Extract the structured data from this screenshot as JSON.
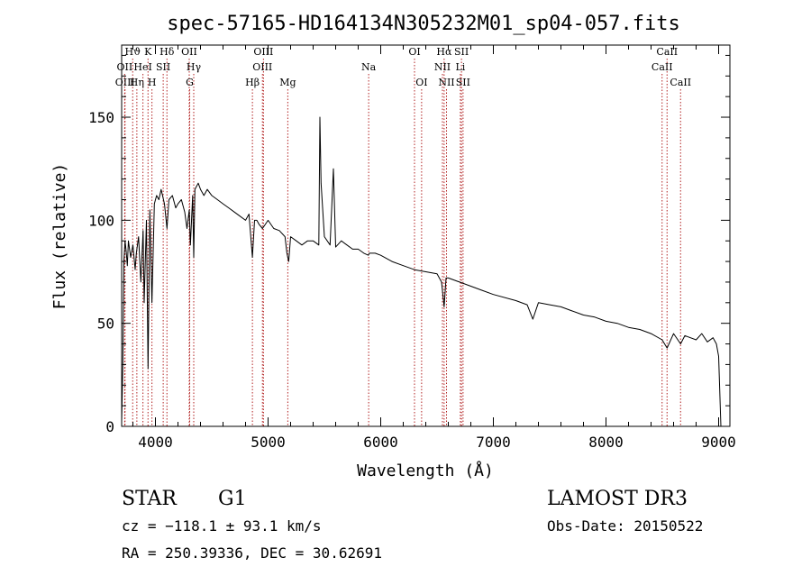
{
  "chart_data": {
    "type": "line",
    "title": "spec-57165-HD164134N305232M01_sp04-057.fits",
    "xlabel": "Wavelength (Å)",
    "ylabel": "Flux (relative)",
    "xlim": [
      3700,
      9100
    ],
    "ylim": [
      0,
      185
    ],
    "x_ticks": [
      4000,
      5000,
      6000,
      7000,
      8000,
      9000
    ],
    "x_tick_labels": [
      "4000",
      "5000",
      "6000",
      "7000",
      "8000",
      "9000"
    ],
    "y_ticks": [
      0,
      50,
      100,
      150
    ],
    "y_tick_labels": [
      "0",
      "50",
      "100",
      "150"
    ],
    "series": [
      {
        "name": "Flux",
        "x": [
          3700,
          3710,
          3720,
          3730,
          3740,
          3750,
          3760,
          3780,
          3800,
          3820,
          3830,
          3850,
          3870,
          3890,
          3900,
          3920,
          3934,
          3950,
          3969,
          3990,
          4010,
          4030,
          4050,
          4080,
          4102,
          4120,
          4150,
          4180,
          4200,
          4230,
          4260,
          4280,
          4300,
          4310,
          4330,
          4340,
          4350,
          4380,
          4400,
          4430,
          4460,
          4500,
          4550,
          4600,
          4650,
          4700,
          4750,
          4800,
          4830,
          4861,
          4880,
          4900,
          4920,
          4950,
          5000,
          5050,
          5100,
          5150,
          5167,
          5183,
          5200,
          5250,
          5300,
          5350,
          5400,
          5450,
          5460,
          5470,
          5500,
          5550,
          5580,
          5600,
          5650,
          5700,
          5750,
          5800,
          5850,
          5890,
          5900,
          5950,
          6000,
          6100,
          6200,
          6300,
          6400,
          6500,
          6540,
          6563,
          6580,
          6600,
          6700,
          6800,
          6900,
          7000,
          7200,
          7300,
          7350,
          7400,
          7500,
          7600,
          7700,
          7800,
          7900,
          8000,
          8100,
          8200,
          8300,
          8400,
          8498,
          8542,
          8600,
          8662,
          8700,
          8800,
          8850,
          8900,
          8950,
          8980,
          9000,
          9020
        ],
        "values": [
          2,
          30,
          80,
          90,
          85,
          78,
          90,
          82,
          88,
          76,
          84,
          92,
          70,
          95,
          60,
          100,
          28,
          105,
          60,
          108,
          112,
          110,
          115,
          108,
          96,
          110,
          112,
          106,
          108,
          110,
          104,
          96,
          105,
          88,
          112,
          82,
          115,
          118,
          115,
          112,
          115,
          112,
          110,
          108,
          106,
          104,
          102,
          100,
          103,
          82,
          100,
          100,
          98,
          96,
          100,
          96,
          95,
          92,
          84,
          80,
          92,
          90,
          88,
          90,
          90,
          88,
          150,
          118,
          92,
          88,
          125,
          87,
          90,
          88,
          86,
          86,
          84,
          83,
          84,
          84,
          83,
          80,
          78,
          76,
          75,
          74,
          70,
          58,
          72,
          72,
          70,
          68,
          66,
          64,
          61,
          59,
          52,
          60,
          59,
          58,
          56,
          54,
          53,
          51,
          50,
          48,
          47,
          45,
          42,
          38,
          45,
          40,
          44,
          42,
          45,
          41,
          43,
          40,
          34,
          0
        ]
      }
    ],
    "spectral_lines": [
      {
        "label": "Hϑ",
        "wavelength": 3798,
        "row": 1
      },
      {
        "label": "K",
        "wavelength": 3934,
        "row": 1
      },
      {
        "label": "Hδ",
        "wavelength": 4102,
        "row": 1
      },
      {
        "label": "OII",
        "wavelength": 4300,
        "row": 1
      },
      {
        "label": "OIII",
        "wavelength": 4959,
        "row": 1
      },
      {
        "label": "OI",
        "wavelength": 6300,
        "row": 1
      },
      {
        "label": "Hα",
        "wavelength": 6563,
        "row": 1
      },
      {
        "label": "SII",
        "wavelength": 6717,
        "row": 1
      },
      {
        "label": "CaII",
        "wavelength": 8542,
        "row": 1
      },
      {
        "label": "OII",
        "wavelength": 3727,
        "row": 2
      },
      {
        "label": "HeI",
        "wavelength": 3889,
        "row": 2
      },
      {
        "label": "SII",
        "wavelength": 4069,
        "row": 2
      },
      {
        "label": "Hγ",
        "wavelength": 4340,
        "row": 2
      },
      {
        "label": "OIII",
        "wavelength": 4950,
        "row": 2
      },
      {
        "label": "Na",
        "wavelength": 5893,
        "row": 2
      },
      {
        "label": "NII",
        "wavelength": 6548,
        "row": 2
      },
      {
        "label": "Li",
        "wavelength": 6707,
        "row": 2
      },
      {
        "label": "CaII",
        "wavelength": 8498,
        "row": 2
      },
      {
        "label": "OIII",
        "wavelength": 3730,
        "row": 3
      },
      {
        "label": "Hη",
        "wavelength": 3835,
        "row": 3
      },
      {
        "label": "H",
        "wavelength": 3969,
        "row": 3
      },
      {
        "label": "G",
        "wavelength": 4304,
        "row": 3
      },
      {
        "label": "Hβ",
        "wavelength": 4861,
        "row": 3
      },
      {
        "label": "Mg",
        "wavelength": 5175,
        "row": 3
      },
      {
        "label": "OI",
        "wavelength": 6363,
        "row": 3
      },
      {
        "label": "NII",
        "wavelength": 6584,
        "row": 3
      },
      {
        "label": "SII",
        "wavelength": 6731,
        "row": 3
      },
      {
        "label": "CaII",
        "wavelength": 8662,
        "row": 3
      }
    ]
  },
  "info": {
    "class_label": "STAR",
    "subclass": "G1",
    "survey": "LAMOST DR3",
    "redshift": "cz = −118.1 ± 93.1 km/s",
    "obs_date": "Obs-Date: 20150522",
    "coords": "RA = 250.39336, DEC =  30.62691"
  },
  "colors": {
    "line": "#000000",
    "marker": "#b22222"
  }
}
